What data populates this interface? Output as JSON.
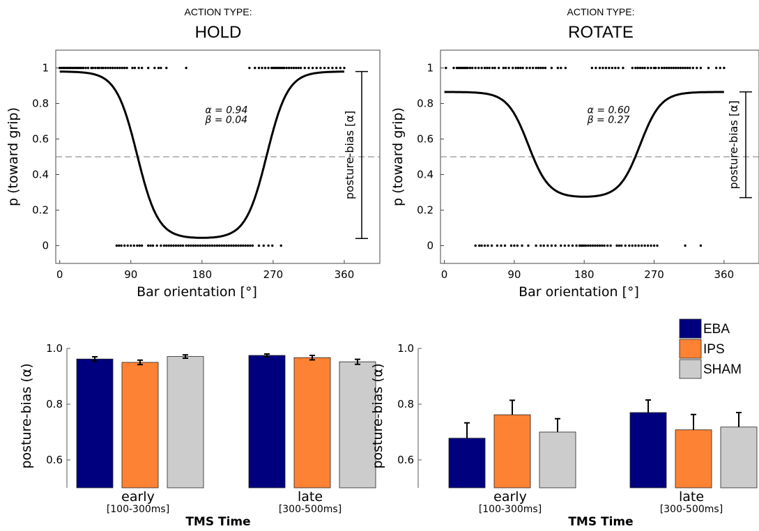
{
  "chart_data": [
    {
      "type": "line",
      "supertitle": "ACTION TYPE:",
      "title": "HOLD",
      "xlabel": "Bar orientation [°]",
      "ylabel": "p (toward grip)",
      "xlim": [
        -5,
        405
      ],
      "ylim": [
        -0.1,
        1.1
      ],
      "xticks": [
        "0",
        "90",
        "180",
        "270",
        "360"
      ],
      "yticks": [
        "0",
        "0.2",
        "0.4",
        "0.6",
        "0.8",
        "1"
      ],
      "reference_line": 0.5,
      "fit": {
        "high": 0.98,
        "low": 0.04,
        "center": 180,
        "crossing_offset": 82,
        "slope": 0.075,
        "x_range": [
          0,
          360
        ]
      },
      "param_alpha": "α = 0.94",
      "param_beta": "β = 0.04",
      "bias_label": "posture-bias [α]",
      "responses_at_1": [
        0,
        2,
        4,
        6,
        8,
        10,
        12,
        14,
        16,
        18,
        20,
        22,
        24,
        26,
        28,
        30,
        33,
        36,
        40,
        42,
        45,
        48,
        50,
        53,
        55,
        58,
        61,
        64,
        67,
        70,
        73,
        76,
        79,
        82,
        85,
        92,
        95,
        100,
        104,
        112,
        120,
        125,
        128,
        135,
        160,
        240,
        247,
        252,
        256,
        260,
        264,
        268,
        270,
        272,
        274,
        276,
        278,
        280,
        282,
        284,
        287,
        290,
        293,
        296,
        299,
        302,
        305,
        310,
        315,
        320,
        325,
        330,
        335,
        340,
        345,
        350,
        355,
        360
      ],
      "responses_at_0": [
        72,
        75,
        78,
        82,
        86,
        90,
        94,
        98,
        101,
        104,
        112,
        115,
        118,
        123,
        128,
        132,
        135,
        138,
        141,
        144,
        147,
        150,
        153,
        156,
        160,
        163,
        166,
        169,
        172,
        175,
        178,
        181,
        184,
        187,
        190,
        193,
        196,
        199,
        202,
        205,
        208,
        211,
        214,
        217,
        220,
        223,
        226,
        229,
        232,
        235,
        238,
        241,
        244,
        252,
        258,
        264,
        269,
        280
      ]
    },
    {
      "type": "line",
      "supertitle": "ACTION TYPE:",
      "title": "ROTATE",
      "xlabel": "Bar orientation [°]",
      "ylabel": "p (toward grip)",
      "xlim": [
        -5,
        405
      ],
      "ylim": [
        -0.1,
        1.1
      ],
      "xticks": [
        "0",
        "90",
        "180",
        "270",
        "360"
      ],
      "yticks": [
        "0",
        "0.2",
        "0.4",
        "0.6",
        "0.8",
        "1"
      ],
      "reference_line": 0.5,
      "fit": {
        "high": 0.865,
        "low": 0.27,
        "center": 180,
        "crossing_offset": 72,
        "slope": 0.075,
        "x_range": [
          0,
          360
        ]
      },
      "param_alpha": "α = 0.60",
      "param_beta": "β = 0.27",
      "bias_label": "posture-bias [α]",
      "responses_at_1": [
        2,
        12,
        16,
        18,
        20,
        22,
        24,
        26,
        28,
        30,
        33,
        36,
        40,
        44,
        48,
        52,
        55,
        58,
        62,
        65,
        70,
        76,
        79,
        83,
        88,
        92,
        95,
        98,
        101,
        106,
        110,
        114,
        118,
        121,
        124,
        127,
        130,
        138,
        146,
        150,
        156,
        190,
        195,
        200,
        204,
        208,
        212,
        216,
        220,
        224,
        230,
        242,
        246,
        249,
        252,
        255,
        258,
        262,
        266,
        270,
        272,
        276,
        280,
        283,
        286,
        289,
        292,
        295,
        298,
        301,
        304,
        307,
        310,
        313,
        316,
        320,
        325,
        330,
        340,
        350,
        355,
        360
      ],
      "responses_at_0": [
        40,
        45,
        48,
        52,
        56,
        61,
        68,
        73,
        78,
        86,
        90,
        94,
        100,
        108,
        118,
        124,
        128,
        133,
        138,
        143,
        150,
        155,
        160,
        165,
        170,
        174,
        176,
        178,
        180,
        182,
        185,
        188,
        191,
        194,
        197,
        200,
        203,
        206,
        210,
        214,
        222,
        225,
        228,
        233,
        238,
        242,
        246,
        250,
        254,
        258,
        262,
        266,
        270,
        274,
        310,
        330
      ]
    },
    {
      "type": "bar",
      "ylabel": "posture-bias (α)",
      "xlabel": "TMS Time",
      "categories": [
        "early",
        "late"
      ],
      "category_sublabels": [
        "[100-300ms]",
        "[300-500ms]"
      ],
      "ylim": [
        0.5,
        1.0
      ],
      "yticks": [
        "0.6",
        "0.8",
        "1.0"
      ],
      "series": [
        {
          "name": "EBA",
          "color": "#00007f",
          "values": [
            0.962,
            0.975
          ],
          "errors": [
            0.008,
            0.005
          ]
        },
        {
          "name": "IPS",
          "color": "#fe8234",
          "values": [
            0.95,
            0.967
          ],
          "errors": [
            0.008,
            0.008
          ]
        },
        {
          "name": "SHAM",
          "color": "#cccccc",
          "values": [
            0.971,
            0.952
          ],
          "errors": [
            0.006,
            0.009
          ]
        }
      ]
    },
    {
      "type": "bar",
      "ylabel": "posture-bias (α)",
      "xlabel": "TMS Time",
      "categories": [
        "early",
        "late"
      ],
      "category_sublabels": [
        "[100-300ms]",
        "[300-500ms]"
      ],
      "ylim": [
        0.5,
        1.0
      ],
      "yticks": [
        "0.6",
        "0.8",
        "1.0"
      ],
      "legend_position": "top-right",
      "series": [
        {
          "name": "EBA",
          "color": "#00007f",
          "values": [
            0.678,
            0.77
          ],
          "errors": [
            0.055,
            0.045
          ]
        },
        {
          "name": "IPS",
          "color": "#fe8234",
          "values": [
            0.762,
            0.708
          ],
          "errors": [
            0.052,
            0.055
          ]
        },
        {
          "name": "SHAM",
          "color": "#cccccc",
          "values": [
            0.7,
            0.718
          ],
          "errors": [
            0.048,
            0.052
          ]
        }
      ]
    }
  ]
}
